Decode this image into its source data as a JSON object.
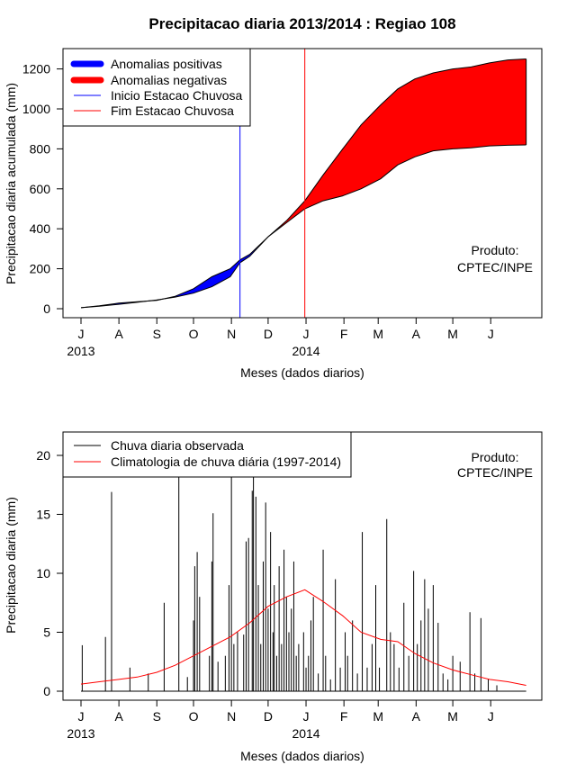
{
  "chart_data": [
    {
      "type": "area",
      "title": "Precipitacao diaria 2013/2014 : Regiao 108",
      "xlabel": "Meses (dados diarios)",
      "ylabel": "Precipitacao diaria acumulada (mm)",
      "ylim": [
        0,
        1250
      ],
      "yticks": [
        "0",
        "200",
        "400",
        "600",
        "800",
        "1000",
        "1200"
      ],
      "month_ticks": [
        "J",
        "A",
        "S",
        "O",
        "N",
        "D",
        "J",
        "F",
        "M",
        "A",
        "M",
        "J"
      ],
      "year_labels": [
        "2013",
        "2014"
      ],
      "legend": [
        "Anomalias positivas",
        "Anomalias negativas",
        "Inicio Estacao Chuvosa",
        "Fim Estacao Chuvosa"
      ],
      "annotation": [
        "Produto:",
        "CPTEC/INPE"
      ],
      "x_days": [
        0,
        15,
        31,
        46,
        62,
        77,
        92,
        107,
        122,
        130,
        138,
        153,
        168,
        183,
        198,
        214,
        229,
        245,
        259,
        273,
        288,
        304,
        319,
        334,
        349,
        364
      ],
      "observed_cumulative": [
        5,
        15,
        28,
        35,
        42,
        62,
        100,
        160,
        200,
        245,
        272,
        360,
        430,
        500,
        540,
        565,
        600,
        650,
        720,
        760,
        790,
        800,
        805,
        815,
        818,
        820
      ],
      "climatology_cumulative": [
        5,
        12,
        22,
        32,
        44,
        58,
        78,
        110,
        160,
        230,
        262,
        360,
        440,
        540,
        670,
        800,
        920,
        1020,
        1100,
        1150,
        1180,
        1200,
        1210,
        1230,
        1245,
        1250
      ],
      "inicio_estacao_day": 130,
      "fim_estacao_day": 183,
      "colors": {
        "positive": "#0000ff",
        "negative": "#ff0000",
        "inicio": "#0000ff",
        "fim": "#ff0000"
      }
    },
    {
      "type": "bar",
      "xlabel": "Meses (dados diarios)",
      "ylabel": "Precipitacao diaria (mm)",
      "ylim": [
        0,
        22
      ],
      "yticks": [
        "0",
        "5",
        "10",
        "15",
        "20"
      ],
      "month_ticks": [
        "J",
        "A",
        "S",
        "O",
        "N",
        "D",
        "J",
        "F",
        "M",
        "A",
        "M",
        "J"
      ],
      "year_labels": [
        "2013",
        "2014"
      ],
      "legend": [
        "Chuva diaria observada",
        "Climatologia de chuva diária (1997-2014)"
      ],
      "annotation": [
        "Produto:",
        "CPTEC/INPE"
      ],
      "observed_spikes": [
        {
          "day": 1,
          "value": 3.9
        },
        {
          "day": 20,
          "value": 4.6
        },
        {
          "day": 25,
          "value": 16.9
        },
        {
          "day": 40,
          "value": 2
        },
        {
          "day": 55,
          "value": 1.5
        },
        {
          "day": 68,
          "value": 7.5
        },
        {
          "day": 80,
          "value": 22
        },
        {
          "day": 87,
          "value": 1.2
        },
        {
          "day": 92,
          "value": 6
        },
        {
          "day": 93,
          "value": 10.6
        },
        {
          "day": 95,
          "value": 11.8
        },
        {
          "day": 97,
          "value": 8
        },
        {
          "day": 105,
          "value": 3
        },
        {
          "day": 107,
          "value": 11
        },
        {
          "day": 108,
          "value": 15.1
        },
        {
          "day": 112,
          "value": 2.5
        },
        {
          "day": 118,
          "value": 3
        },
        {
          "day": 121,
          "value": 9
        },
        {
          "day": 123,
          "value": 22
        },
        {
          "day": 125,
          "value": 4
        },
        {
          "day": 128,
          "value": 5
        },
        {
          "day": 133,
          "value": 4.8
        },
        {
          "day": 135,
          "value": 12.7
        },
        {
          "day": 137,
          "value": 13
        },
        {
          "day": 140,
          "value": 17
        },
        {
          "day": 141,
          "value": 22
        },
        {
          "day": 143,
          "value": 16.5
        },
        {
          "day": 145,
          "value": 9
        },
        {
          "day": 147,
          "value": 4
        },
        {
          "day": 149,
          "value": 11
        },
        {
          "day": 151,
          "value": 16
        },
        {
          "day": 153,
          "value": 7
        },
        {
          "day": 155,
          "value": 13.5
        },
        {
          "day": 157,
          "value": 5
        },
        {
          "day": 158,
          "value": 9
        },
        {
          "day": 160,
          "value": 3
        },
        {
          "day": 162,
          "value": 10.6
        },
        {
          "day": 164,
          "value": 4
        },
        {
          "day": 166,
          "value": 12
        },
        {
          "day": 168,
          "value": 8
        },
        {
          "day": 170,
          "value": 5
        },
        {
          "day": 172,
          "value": 7
        },
        {
          "day": 174,
          "value": 11
        },
        {
          "day": 176,
          "value": 3
        },
        {
          "day": 178,
          "value": 4
        },
        {
          "day": 182,
          "value": 5
        },
        {
          "day": 184,
          "value": 2
        },
        {
          "day": 186,
          "value": 3
        },
        {
          "day": 188,
          "value": 6
        },
        {
          "day": 190,
          "value": 8
        },
        {
          "day": 194,
          "value": 1.5
        },
        {
          "day": 198,
          "value": 12
        },
        {
          "day": 200,
          "value": 3
        },
        {
          "day": 204,
          "value": 1
        },
        {
          "day": 208,
          "value": 9.5
        },
        {
          "day": 212,
          "value": 2
        },
        {
          "day": 216,
          "value": 5
        },
        {
          "day": 218,
          "value": 3
        },
        {
          "day": 222,
          "value": 6
        },
        {
          "day": 226,
          "value": 1.5
        },
        {
          "day": 230,
          "value": 13.5
        },
        {
          "day": 234,
          "value": 2
        },
        {
          "day": 238,
          "value": 4
        },
        {
          "day": 241,
          "value": 9
        },
        {
          "day": 244,
          "value": 2
        },
        {
          "day": 250,
          "value": 14.6
        },
        {
          "day": 253,
          "value": 5
        },
        {
          "day": 256,
          "value": 4
        },
        {
          "day": 260,
          "value": 2
        },
        {
          "day": 264,
          "value": 7.5
        },
        {
          "day": 268,
          "value": 3
        },
        {
          "day": 272,
          "value": 10.2
        },
        {
          "day": 275,
          "value": 4
        },
        {
          "day": 278,
          "value": 6
        },
        {
          "day": 281,
          "value": 9.5
        },
        {
          "day": 284,
          "value": 7
        },
        {
          "day": 288,
          "value": 9
        },
        {
          "day": 292,
          "value": 5.8
        },
        {
          "day": 296,
          "value": 1.5
        },
        {
          "day": 300,
          "value": 1
        },
        {
          "day": 304,
          "value": 3
        },
        {
          "day": 310,
          "value": 2.5
        },
        {
          "day": 318,
          "value": 6.7
        },
        {
          "day": 322,
          "value": 1.5
        },
        {
          "day": 327,
          "value": 6.2
        },
        {
          "day": 333,
          "value": 1
        },
        {
          "day": 340,
          "value": 0.5
        }
      ],
      "climatology_curve": [
        {
          "day": 0,
          "value": 0.6
        },
        {
          "day": 15,
          "value": 0.8
        },
        {
          "day": 31,
          "value": 1.0
        },
        {
          "day": 46,
          "value": 1.2
        },
        {
          "day": 62,
          "value": 1.6
        },
        {
          "day": 77,
          "value": 2.2
        },
        {
          "day": 92,
          "value": 3.0
        },
        {
          "day": 107,
          "value": 3.8
        },
        {
          "day": 122,
          "value": 4.6
        },
        {
          "day": 138,
          "value": 5.8
        },
        {
          "day": 153,
          "value": 7.2
        },
        {
          "day": 168,
          "value": 8.0
        },
        {
          "day": 183,
          "value": 8.6
        },
        {
          "day": 198,
          "value": 7.6
        },
        {
          "day": 214,
          "value": 6.4
        },
        {
          "day": 229,
          "value": 5.0
        },
        {
          "day": 245,
          "value": 4.4
        },
        {
          "day": 259,
          "value": 4.2
        },
        {
          "day": 273,
          "value": 3.2
        },
        {
          "day": 288,
          "value": 2.4
        },
        {
          "day": 304,
          "value": 1.8
        },
        {
          "day": 319,
          "value": 1.4
        },
        {
          "day": 334,
          "value": 1.0
        },
        {
          "day": 349,
          "value": 0.8
        },
        {
          "day": 364,
          "value": 0.5
        }
      ],
      "colors": {
        "observed": "#000000",
        "climatology": "#ff0000"
      }
    }
  ]
}
